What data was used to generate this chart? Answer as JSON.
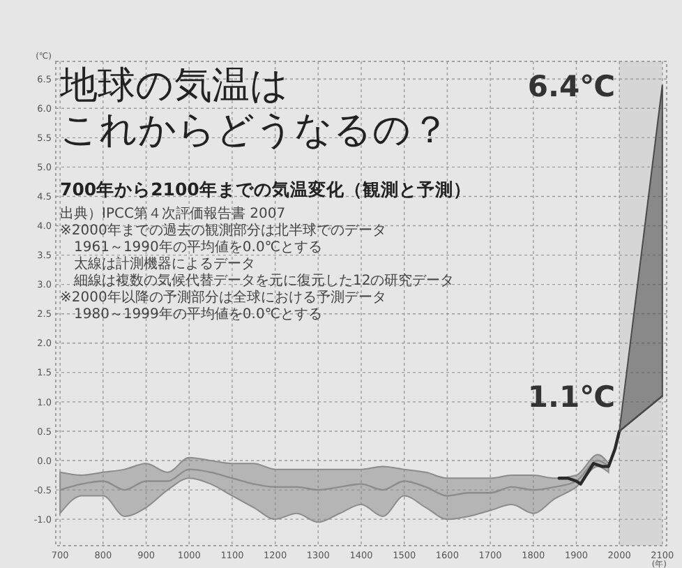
{
  "chart_data": {
    "type": "line",
    "title": "地球の気温はこれからどうなるの？",
    "subtitle": "700年から2100年までの気温変化（観測と予測）",
    "ylabel": "(℃)",
    "xlabel": "(年)",
    "annotations": [
      "出典）IPCC第４次評価報告書 2007",
      "※2000年までの過去の観測部分は北半球でのデータ",
      "　1961～1990年の平均値を0.0℃とする",
      "　太線は計測機器によるデータ",
      "　細線は複数の気候代替データを元に復元した12の研究データ",
      "※2000年以降の予測部分は全球における予測データ",
      "　1980～1999年の平均値を0.0℃とする",
      {
        "text": "6.4℃",
        "x": 2100,
        "y": 6.4
      },
      {
        "text": "1.1℃",
        "x": 2100,
        "y": 1.1
      }
    ],
    "series": [
      {
        "color": "#8c8c8c",
        "x": [
          700,
          750,
          800,
          850,
          900,
          950,
          1000,
          1050,
          1100,
          1150,
          1200,
          1250,
          1300,
          1350,
          1400,
          1450,
          1500,
          1550,
          1600,
          1650,
          1700,
          1750,
          1800,
          1850,
          1900,
          1950,
          1975
        ],
        "values": [
          -0.5,
          -0.4,
          -0.35,
          -0.5,
          -0.35,
          -0.35,
          -0.15,
          -0.2,
          -0.3,
          -0.4,
          -0.45,
          -0.45,
          -0.5,
          -0.45,
          -0.4,
          -0.5,
          -0.35,
          -0.45,
          -0.6,
          -0.55,
          -0.55,
          -0.45,
          -0.5,
          -0.45,
          -0.35,
          0.0,
          -0.1
        ],
        "lower": [
          -0.9,
          -0.6,
          -0.6,
          -0.95,
          -0.8,
          -0.5,
          -0.3,
          -0.4,
          -0.6,
          -0.8,
          -1.0,
          -0.9,
          -1.05,
          -0.9,
          -0.75,
          -0.95,
          -0.6,
          -0.8,
          -1.0,
          -0.95,
          -0.85,
          -0.75,
          -0.9,
          -0.65,
          -0.45,
          -0.1,
          -0.2
        ],
        "upper": [
          -0.2,
          -0.25,
          -0.2,
          -0.15,
          -0.05,
          -0.2,
          0.05,
          0.0,
          -0.05,
          -0.05,
          -0.15,
          -0.15,
          -0.15,
          -0.15,
          -0.15,
          -0.1,
          -0.15,
          -0.2,
          -0.3,
          -0.3,
          -0.3,
          -0.25,
          -0.25,
          -0.3,
          -0.25,
          0.1,
          -0.05
        ]
      },
      {
        "color": "#2a2a2a",
        "x": [
          1860,
          1880,
          1900,
          1910,
          1940,
          1960,
          1975,
          1990,
          2000
        ],
        "values": [
          -0.3,
          -0.3,
          -0.35,
          -0.4,
          -0.05,
          -0.1,
          -0.1,
          0.2,
          0.5
        ]
      },
      {
        "color": "#4a4a4a",
        "x": [
          2000,
          2100
        ],
        "values": [
          0.5,
          1.1
        ],
        "lower": [
          0.5,
          1.1
        ],
        "upper": [
          0.5,
          6.4
        ]
      }
    ],
    "bands": [
      {
        "axis": "x",
        "from": 2000,
        "to": 2100,
        "color": "#d6d6d6"
      }
    ],
    "xlim": [
      690,
      2110
    ],
    "ylim": [
      -1.45,
      6.8
    ],
    "xticks": [
      700,
      800,
      900,
      1000,
      1100,
      1200,
      1300,
      1400,
      1500,
      1600,
      1700,
      1800,
      1900,
      2000,
      2100
    ],
    "yticks": [
      {
        "value": -1,
        "label": "-1.0"
      },
      {
        "value": -0.5,
        "label": "-0.5"
      },
      {
        "value": 0,
        "label": "0.0"
      },
      0.5,
      {
        "value": 1,
        "label": "1.0"
      },
      1.5,
      {
        "value": 2,
        "label": "2.0"
      },
      2.5,
      {
        "value": 3,
        "label": "3.0"
      },
      3.5,
      {
        "value": 4,
        "label": "4.0"
      },
      4.5,
      {
        "value": 5,
        "label": "5.0"
      },
      5.5,
      {
        "value": 6,
        "label": "6.0"
      },
      6.5
    ],
    "grid": true,
    "line_style": "solid"
  }
}
